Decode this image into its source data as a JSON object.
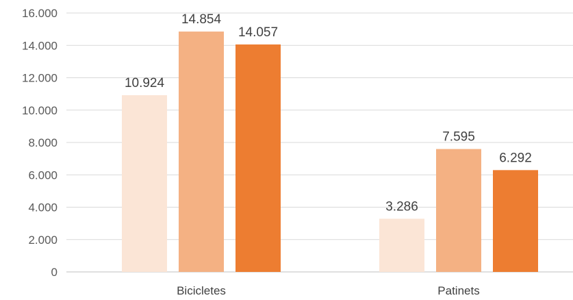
{
  "chart_data": {
    "type": "bar",
    "title": "",
    "xlabel": "",
    "ylabel": "",
    "categories": [
      "Bicicletes",
      "Patinets"
    ],
    "series": [
      {
        "values": [
          10924,
          3286
        ],
        "labels": [
          "10.924",
          "3.286"
        ],
        "color": "#fbe5d6"
      },
      {
        "values": [
          14854,
          7595
        ],
        "labels": [
          "14.854",
          "7.595"
        ],
        "color": "#f4b183"
      },
      {
        "values": [
          14057,
          6292
        ],
        "labels": [
          "14.057",
          "6.292"
        ],
        "color": "#ed7d31"
      }
    ],
    "ylim": [
      0,
      16000
    ],
    "yticks": [
      0,
      2000,
      4000,
      6000,
      8000,
      10000,
      12000,
      14000,
      16000
    ],
    "ytick_labels": [
      "0",
      "2.000",
      "4.000",
      "6.000",
      "8.000",
      "10.000",
      "12.000",
      "14.000",
      "16.000"
    ],
    "grid": true,
    "legend": "none"
  }
}
